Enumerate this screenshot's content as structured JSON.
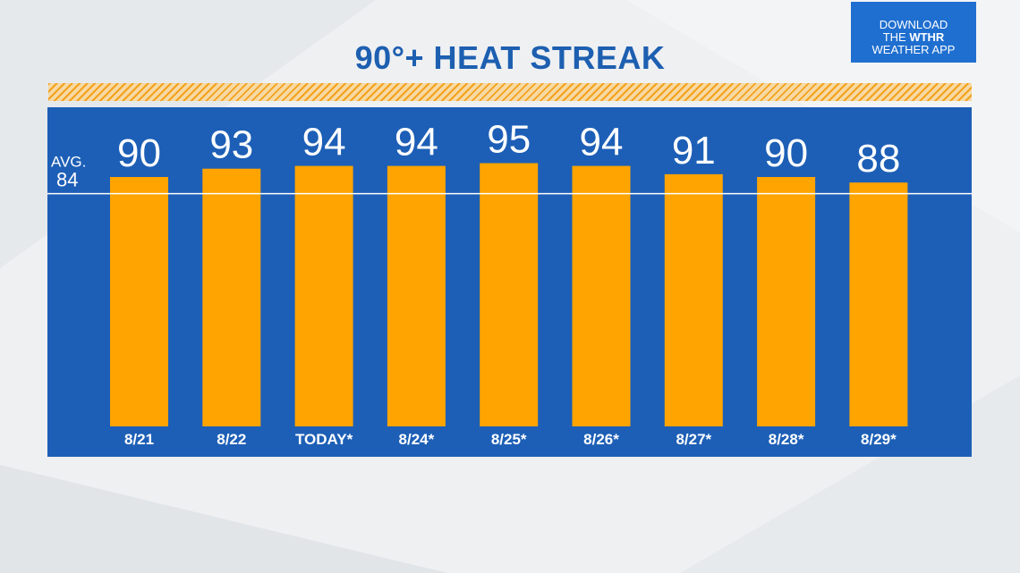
{
  "header": {
    "title": "90°+ HEAT STREAK"
  },
  "app_badge": {
    "line1": "DOWNLOAD",
    "line2_prefix": "THE ",
    "brand": "WTHR",
    "line3": "WEATHER APP",
    "color": "#1f6fd0"
  },
  "colors": {
    "panel": "#1d5fb6",
    "bar": "#ffa400",
    "title": "#1d5fb0",
    "hatch": "#f3a21c",
    "text": "#ffffff"
  },
  "chart_data": {
    "type": "bar",
    "title": "90°+ HEAT STREAK",
    "xlabel": "",
    "ylabel": "",
    "categories": [
      "8/21",
      "8/22",
      "TODAY*",
      "8/24*",
      "8/25*",
      "8/26*",
      "8/27*",
      "8/28*",
      "8/29*"
    ],
    "values": [
      90,
      93,
      94,
      94,
      95,
      94,
      91,
      90,
      88
    ],
    "reference_line": {
      "label": "AVG.",
      "value": 84
    },
    "grid": false,
    "legend": "none"
  }
}
